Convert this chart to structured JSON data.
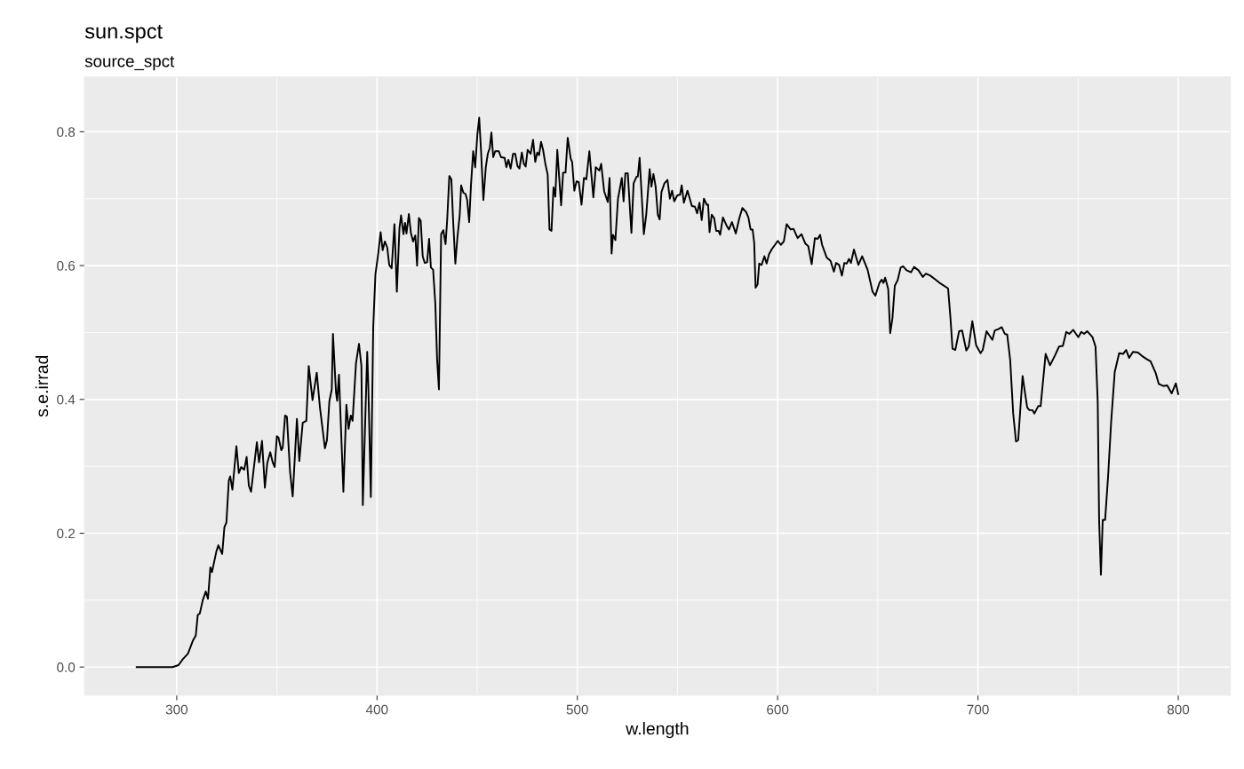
{
  "chart_data": {
    "type": "line",
    "title": "sun.spct",
    "subtitle": "source_spct",
    "xlabel": "w.length",
    "ylabel": "s.e.irrad",
    "x": [
      280,
      297.9,
      300.9,
      303.1,
      305.6,
      308,
      309.5,
      310.5,
      311.5,
      313,
      314.5,
      315.6,
      316.8,
      317.6,
      319.8,
      320.8,
      322.7,
      323.8,
      324.8,
      326,
      326.7,
      327.8,
      329.8,
      331,
      332.2,
      333.7,
      334.9,
      336,
      337.1,
      340,
      341.1,
      342.6,
      344,
      345.2,
      346.7,
      347.9,
      348.9,
      350,
      350.8,
      352.2,
      352.9,
      354.1,
      355,
      356.6,
      357.9,
      360,
      361.2,
      362.9,
      364.7,
      365.9,
      367.8,
      369.9,
      371.5,
      374,
      375,
      376.2,
      377.4,
      378,
      379.5,
      380.1,
      381,
      383.2,
      384.7,
      385.8,
      386.9,
      387.8,
      389.5,
      391,
      392.2,
      392.9,
      395.1,
      395.7,
      396.9,
      398.1,
      399.2,
      400.6,
      401.8,
      402.8,
      403.9,
      405.1,
      406.1,
      407.3,
      408.7,
      409.9,
      411.2,
      412,
      413.2,
      414,
      414.7,
      415.9,
      416.9,
      418,
      419.1,
      420,
      420.9,
      421.8,
      422.8,
      423.8,
      425,
      426,
      426.9,
      428,
      429.1,
      430,
      430.9,
      432,
      433.1,
      434.2,
      435,
      436.1,
      437.1,
      438,
      439.1,
      440.1,
      441.3,
      442,
      443.1,
      444.2,
      445,
      446,
      446.9,
      448,
      449,
      450.1,
      451,
      451.9,
      453.1,
      454.3,
      455.3,
      456.3,
      457.1,
      458,
      459,
      460.8,
      461.9,
      463.7,
      464.6,
      465.6,
      466.7,
      467.9,
      469,
      470.1,
      471.1,
      472.3,
      473.3,
      474.2,
      475.2,
      476.7,
      477.9,
      479,
      480,
      480.9,
      481.9,
      482.9,
      484.1,
      485.2,
      486.1,
      487.1,
      488.1,
      489,
      490,
      491.1,
      491.9,
      492.9,
      494.1,
      495.2,
      496.7,
      497.4,
      498.5,
      499.6,
      500.7,
      502.1,
      503.3,
      504.5,
      506,
      508,
      509.2,
      511,
      511.9,
      513.4,
      515.2,
      516.1,
      517.1,
      517.8,
      519,
      520.3,
      522.2,
      523.1,
      524,
      525.2,
      527,
      528.1,
      529.6,
      530.2,
      531.1,
      533.2,
      534.4,
      536.1,
      537,
      538,
      539.1,
      540.2,
      541.1,
      542,
      543.5,
      545,
      546.2,
      547.3,
      548.4,
      549.9,
      551.3,
      552.1,
      553.2,
      555,
      557.2,
      558.7,
      559.8,
      561,
      562.1,
      563.2,
      564.6,
      565.3,
      566,
      567.1,
      568.3,
      569.3,
      570.5,
      571.3,
      572.7,
      574.5,
      575.7,
      577.2,
      579.1,
      580.9,
      582.4,
      584.3,
      585.4,
      586.5,
      587.5,
      588.3,
      589,
      590,
      590.8,
      592,
      593.4,
      594.5,
      595.7,
      597.2,
      600.1,
      601.6,
      603.1,
      604.5,
      606.5,
      607.9,
      610,
      611.9,
      613.8,
      615.3,
      617,
      618.6,
      620,
      621.2,
      622.2,
      624.5,
      626.4,
      628.1,
      629.2,
      630.7,
      632.1,
      633.3,
      634.5,
      635.6,
      636.6,
      638.1,
      640.3,
      642.2,
      644.9,
      647.4,
      648.8,
      650.8,
      652,
      652.8,
      653.7,
      655.2,
      656.2,
      657.3,
      658.5,
      659.9,
      661.4,
      662.6,
      664.4,
      666.6,
      668.1,
      670.3,
      672.5,
      674,
      676.2,
      678.9,
      681.4,
      685.1,
      686.3,
      687.3,
      688.7,
      690.6,
      692.1,
      694.2,
      695.4,
      697.2,
      699.1,
      701.3,
      702.4,
      704.3,
      707.2,
      708.4,
      710.2,
      711.9,
      713.4,
      714.6,
      716.1,
      717.6,
      719,
      720.1,
      722.3,
      723.5,
      724.6,
      725.7,
      727.2,
      728.2,
      730.1,
      731.3,
      733.8,
      736,
      738.5,
      740.5,
      742.4,
      744.1,
      745.6,
      747.6,
      750.1,
      751.6,
      753,
      754.5,
      757.2,
      758.7,
      759.8,
      760.5,
      761.4,
      762.3,
      763.5,
      765,
      766.5,
      768.3,
      770.5,
      772.5,
      774,
      775.5,
      777.4,
      779.9,
      781.9,
      784.4,
      786.2,
      788.8,
      790.3,
      792.5,
      794.5,
      796.7,
      798.8,
      800
    ],
    "series": [
      {
        "color": "#000000",
        "values": [
          0,
          0,
          0.003,
          0.012,
          0.02,
          0.039,
          0.047,
          0.078,
          0.08,
          0.1,
          0.113,
          0.102,
          0.149,
          0.142,
          0.173,
          0.182,
          0.169,
          0.209,
          0.216,
          0.279,
          0.285,
          0.265,
          0.33,
          0.29,
          0.299,
          0.295,
          0.314,
          0.271,
          0.262,
          0.336,
          0.306,
          0.338,
          0.268,
          0.305,
          0.321,
          0.306,
          0.299,
          0.345,
          0.343,
          0.324,
          0.328,
          0.376,
          0.374,
          0.291,
          0.255,
          0.371,
          0.308,
          0.365,
          0.368,
          0.45,
          0.399,
          0.44,
          0.388,
          0.327,
          0.339,
          0.397,
          0.415,
          0.498,
          0.411,
          0.398,
          0.437,
          0.262,
          0.392,
          0.356,
          0.376,
          0.368,
          0.454,
          0.483,
          0.45,
          0.242,
          0.471,
          0.415,
          0.254,
          0.508,
          0.587,
          0.618,
          0.65,
          0.623,
          0.636,
          0.627,
          0.601,
          0.596,
          0.662,
          0.561,
          0.656,
          0.675,
          0.647,
          0.664,
          0.648,
          0.677,
          0.649,
          0.636,
          0.645,
          0.6,
          0.671,
          0.667,
          0.614,
          0.604,
          0.605,
          0.64,
          0.597,
          0.594,
          0.543,
          0.459,
          0.415,
          0.647,
          0.653,
          0.632,
          0.667,
          0.734,
          0.729,
          0.667,
          0.603,
          0.641,
          0.676,
          0.72,
          0.709,
          0.707,
          0.698,
          0.665,
          0.72,
          0.771,
          0.747,
          0.796,
          0.821,
          0.773,
          0.698,
          0.747,
          0.767,
          0.776,
          0.799,
          0.762,
          0.771,
          0.771,
          0.762,
          0.761,
          0.747,
          0.758,
          0.745,
          0.767,
          0.767,
          0.749,
          0.745,
          0.769,
          0.752,
          0.748,
          0.773,
          0.767,
          0.788,
          0.755,
          0.769,
          0.765,
          0.785,
          0.773,
          0.751,
          0.736,
          0.654,
          0.652,
          0.717,
          0.703,
          0.773,
          0.725,
          0.69,
          0.739,
          0.739,
          0.791,
          0.76,
          0.755,
          0.712,
          0.726,
          0.725,
          0.691,
          0.731,
          0.729,
          0.771,
          0.702,
          0.747,
          0.742,
          0.752,
          0.711,
          0.695,
          0.731,
          0.618,
          0.646,
          0.638,
          0.7,
          0.731,
          0.696,
          0.738,
          0.738,
          0.649,
          0.723,
          0.733,
          0.733,
          0.761,
          0.647,
          0.676,
          0.744,
          0.718,
          0.737,
          0.718,
          0.676,
          0.669,
          0.71,
          0.723,
          0.728,
          0.7,
          0.712,
          0.696,
          0.705,
          0.706,
          0.72,
          0.694,
          0.712,
          0.689,
          0.688,
          0.678,
          0.694,
          0.668,
          0.7,
          0.691,
          0.691,
          0.65,
          0.676,
          0.671,
          0.652,
          0.652,
          0.646,
          0.672,
          0.66,
          0.654,
          0.665,
          0.648,
          0.671,
          0.686,
          0.68,
          0.672,
          0.654,
          0.654,
          0.634,
          0.567,
          0.572,
          0.603,
          0.601,
          0.614,
          0.603,
          0.617,
          0.625,
          0.637,
          0.631,
          0.636,
          0.662,
          0.654,
          0.655,
          0.641,
          0.647,
          0.633,
          0.629,
          0.602,
          0.641,
          0.64,
          0.646,
          0.631,
          0.612,
          0.607,
          0.591,
          0.604,
          0.601,
          0.585,
          0.604,
          0.603,
          0.61,
          0.604,
          0.624,
          0.601,
          0.614,
          0.594,
          0.561,
          0.555,
          0.574,
          0.579,
          0.574,
          0.582,
          0.565,
          0.499,
          0.521,
          0.57,
          0.578,
          0.597,
          0.599,
          0.593,
          0.59,
          0.598,
          0.593,
          0.583,
          0.588,
          0.585,
          0.579,
          0.573,
          0.566,
          0.521,
          0.476,
          0.474,
          0.502,
          0.503,
          0.473,
          0.479,
          0.517,
          0.481,
          0.469,
          0.474,
          0.502,
          0.489,
          0.503,
          0.505,
          0.508,
          0.498,
          0.497,
          0.459,
          0.379,
          0.337,
          0.339,
          0.435,
          0.41,
          0.388,
          0.384,
          0.384,
          0.379,
          0.39,
          0.39,
          0.468,
          0.451,
          0.466,
          0.479,
          0.48,
          0.501,
          0.498,
          0.504,
          0.493,
          0.501,
          0.498,
          0.502,
          0.493,
          0.479,
          0.397,
          0.22,
          0.138,
          0.22,
          0.22,
          0.286,
          0.366,
          0.441,
          0.469,
          0.468,
          0.474,
          0.462,
          0.471,
          0.47,
          0.465,
          0.46,
          0.457,
          0.439,
          0.423,
          0.42,
          0.421,
          0.409,
          0.424,
          0.408
        ]
      }
    ],
    "xlim": [
      254,
      826
    ],
    "ylim": [
      -0.042,
      0.882
    ],
    "xticks": [
      300,
      400,
      500,
      600,
      700,
      800
    ],
    "yticks": [
      {
        "value": 0,
        "label": "0.0"
      },
      0.2,
      0.4,
      0.6,
      0.8
    ],
    "grid": true,
    "marker": "none",
    "line_style": "solid"
  }
}
